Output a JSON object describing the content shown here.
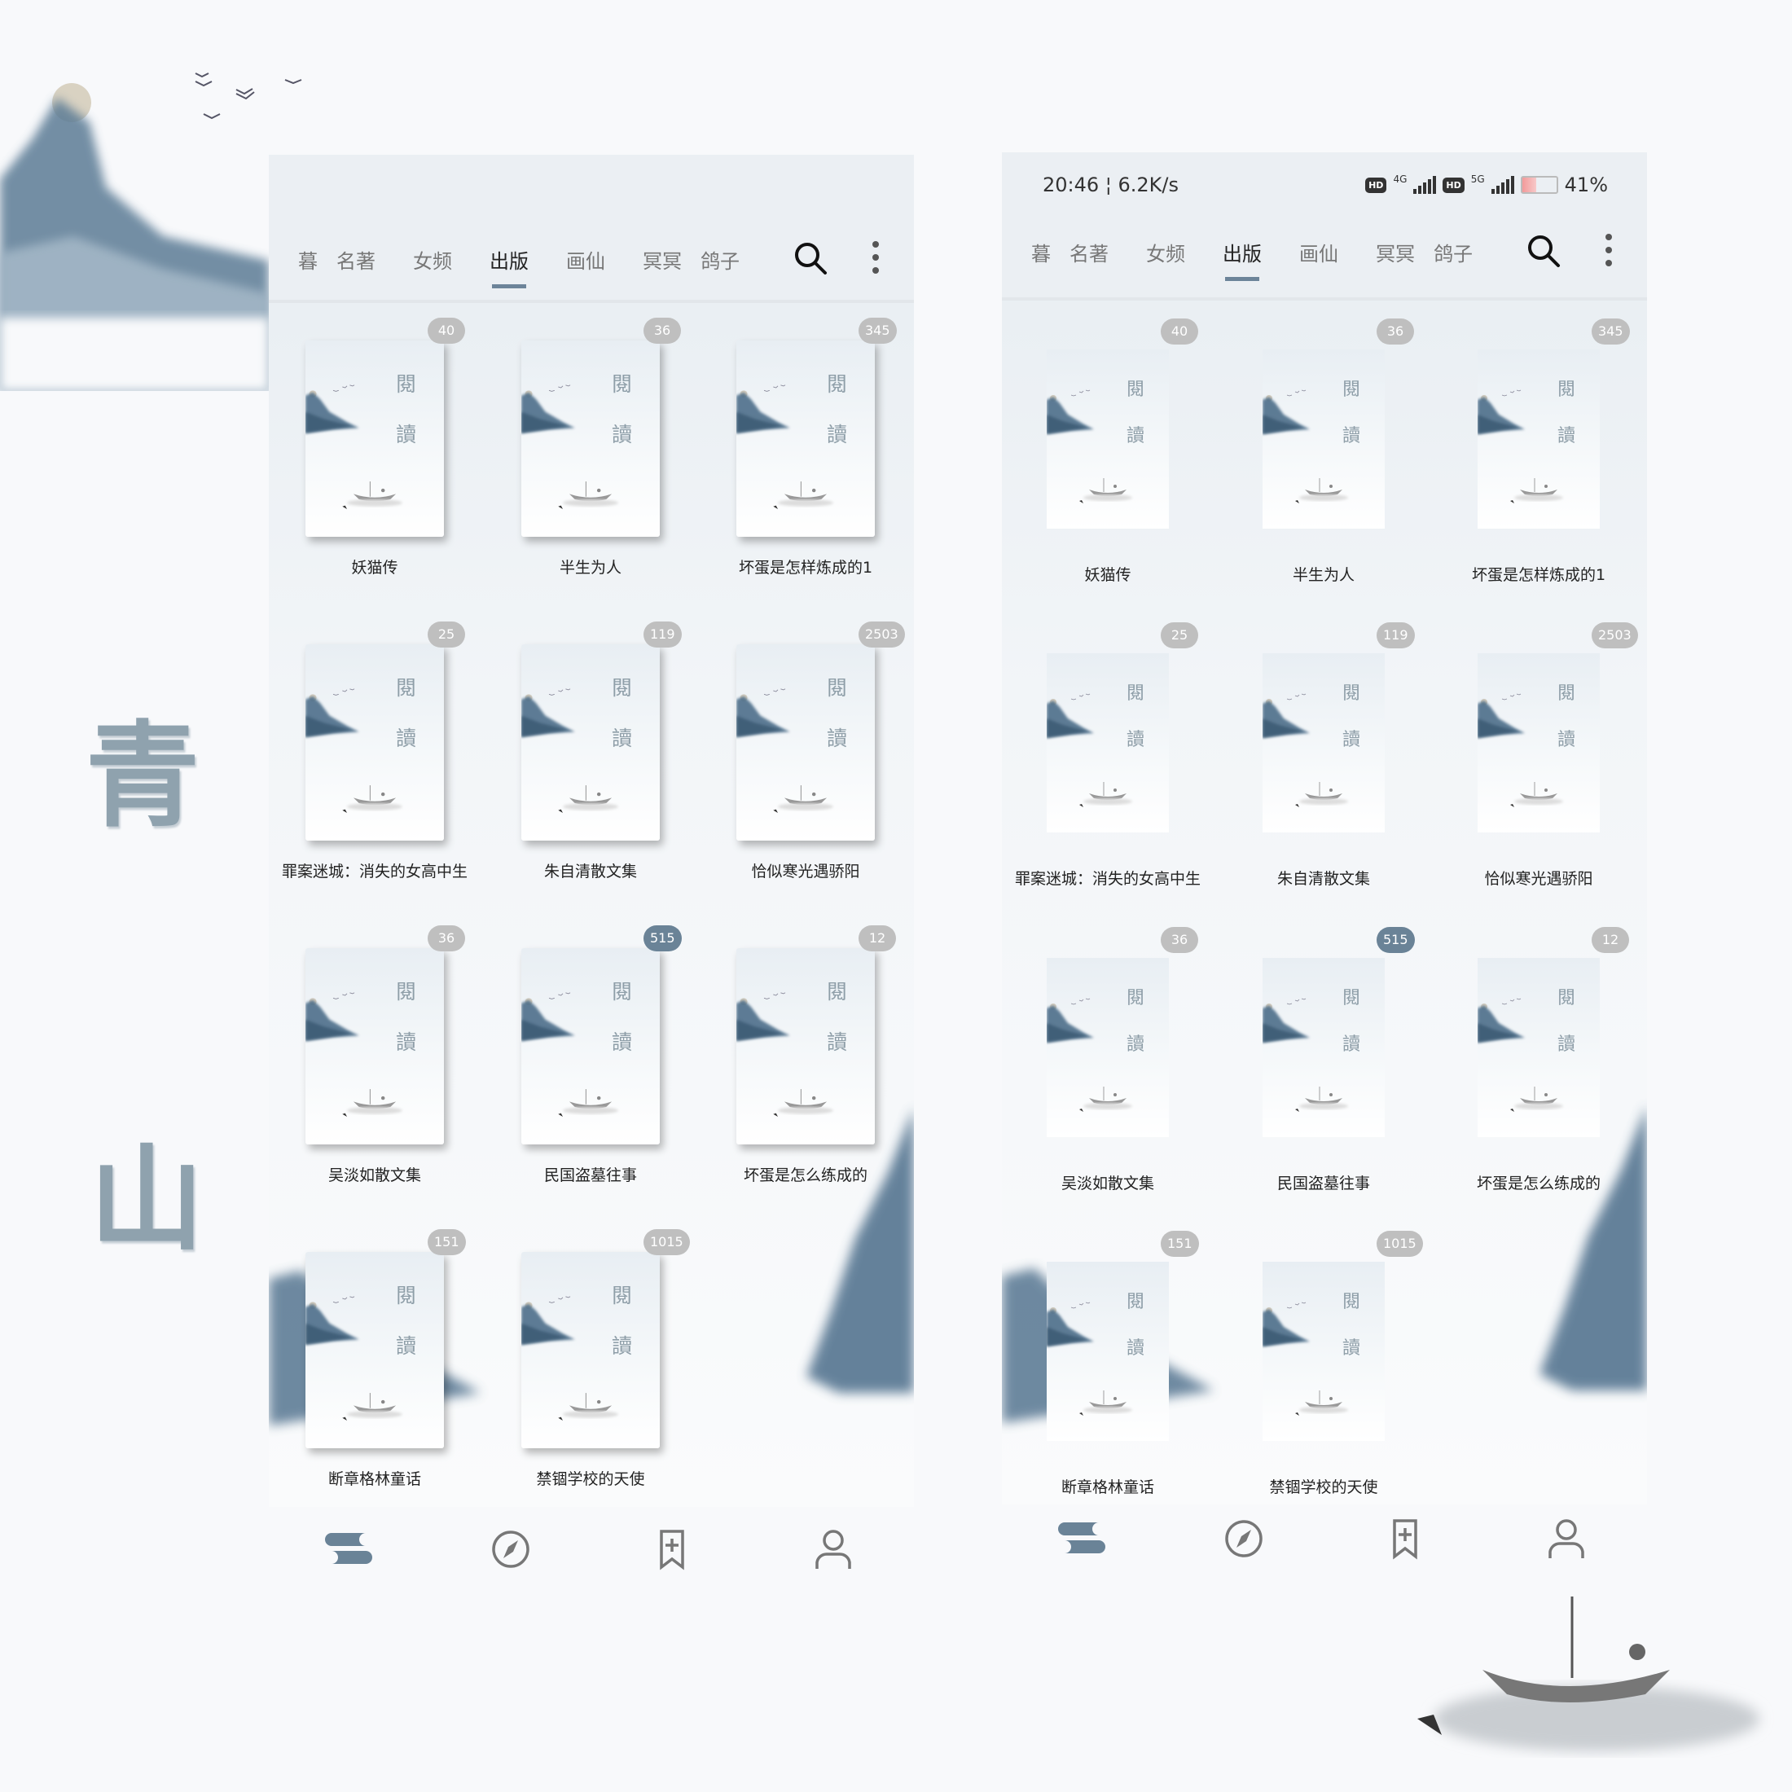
{
  "decor": {
    "char_1": "青",
    "char_2": "山"
  },
  "status_bar": {
    "time_speed": "20:46 ¦ 6.2K/s",
    "net1": "4G",
    "net2": "5G",
    "hd": "HD",
    "battery": "41%",
    "battery_level": 41
  },
  "tabs": [
    {
      "label": "暮"
    },
    {
      "label": "名著"
    },
    {
      "label": "女频"
    },
    {
      "label": "出版",
      "active": true
    },
    {
      "label": "画仙"
    },
    {
      "label": "冥冥"
    },
    {
      "label": "鸽子"
    }
  ],
  "cover_text": {
    "top": "閱",
    "bottom": "讀"
  },
  "books": [
    {
      "title": "妖猫传",
      "count": "40"
    },
    {
      "title": "半生为人",
      "count": "36"
    },
    {
      "title": "坏蛋是怎样炼成的1",
      "count": "345"
    },
    {
      "title": "罪案迷城：消失的女高中生",
      "count": "25"
    },
    {
      "title": "朱自清散文集",
      "count": "119"
    },
    {
      "title": "恰似寒光遇骄阳",
      "count": "2503"
    },
    {
      "title": "吴淡如散文集",
      "count": "36"
    },
    {
      "title": "民国盗墓往事",
      "count": "515",
      "highlight": true
    },
    {
      "title": "坏蛋是怎么练成的",
      "count": "12"
    },
    {
      "title": "断章格林童话",
      "count": "151"
    },
    {
      "title": "禁锢学校的天使",
      "count": "1015"
    }
  ],
  "bottom_nav": [
    {
      "name": "bookshelf",
      "active": true
    },
    {
      "name": "discover"
    },
    {
      "name": "bookmark-add"
    },
    {
      "name": "profile"
    }
  ],
  "colors": {
    "accent": "#6c8499",
    "badge": "#bfbfbf",
    "badge_highlight": "#6a8397",
    "ink": "#4a6a85"
  }
}
